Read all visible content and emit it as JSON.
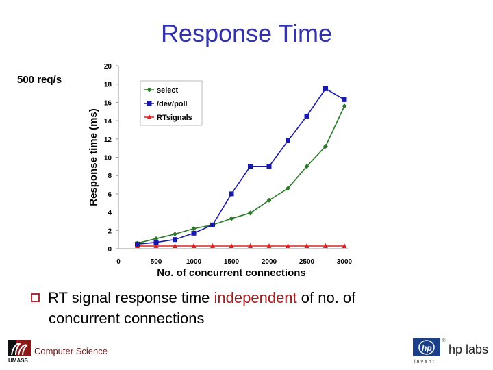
{
  "slide": {
    "title": "Response Time",
    "rate_label": "500 req/s",
    "bullet": {
      "pre": "RT signal response time ",
      "highlight": "independent",
      "post": " of no. of",
      "line2": "concurrent connections"
    },
    "footer": {
      "left_text": "Computer Science",
      "left_logo": "UMASS",
      "right_logo_sub": "invent",
      "right_text": "hp labs"
    }
  },
  "chart_data": {
    "type": "line",
    "title": "",
    "xlabel": "No. of concurrent connections",
    "ylabel": "Response time (ms)",
    "xlim": [
      0,
      3000
    ],
    "ylim": [
      0,
      20
    ],
    "xticks": [
      0,
      500,
      1000,
      1500,
      2000,
      2500,
      3000
    ],
    "yticks": [
      0,
      2,
      4,
      6,
      8,
      10,
      12,
      14,
      16,
      18,
      20
    ],
    "grid": false,
    "legend_position": "upper left inside",
    "x": [
      250,
      500,
      750,
      1000,
      1250,
      1500,
      1750,
      2000,
      2250,
      2500,
      2750,
      3000
    ],
    "series": [
      {
        "name": "select",
        "color": "#2a7a2a",
        "marker": "diamond",
        "values": [
          0.6,
          1.1,
          1.6,
          2.2,
          2.6,
          3.3,
          3.9,
          5.3,
          6.6,
          9.0,
          11.2,
          15.6
        ]
      },
      {
        "name": "/dev/poll",
        "color": "#1a1aa8",
        "marker": "square",
        "values": [
          0.5,
          0.7,
          1.0,
          1.7,
          2.6,
          6.0,
          9.0,
          9.0,
          11.8,
          14.5,
          17.5,
          16.3
        ]
      },
      {
        "name": "RTsignals",
        "color": "#e02020",
        "marker": "triangle",
        "values": [
          0.3,
          0.3,
          0.3,
          0.3,
          0.3,
          0.3,
          0.3,
          0.3,
          0.3,
          0.3,
          0.3,
          0.3
        ]
      }
    ]
  }
}
